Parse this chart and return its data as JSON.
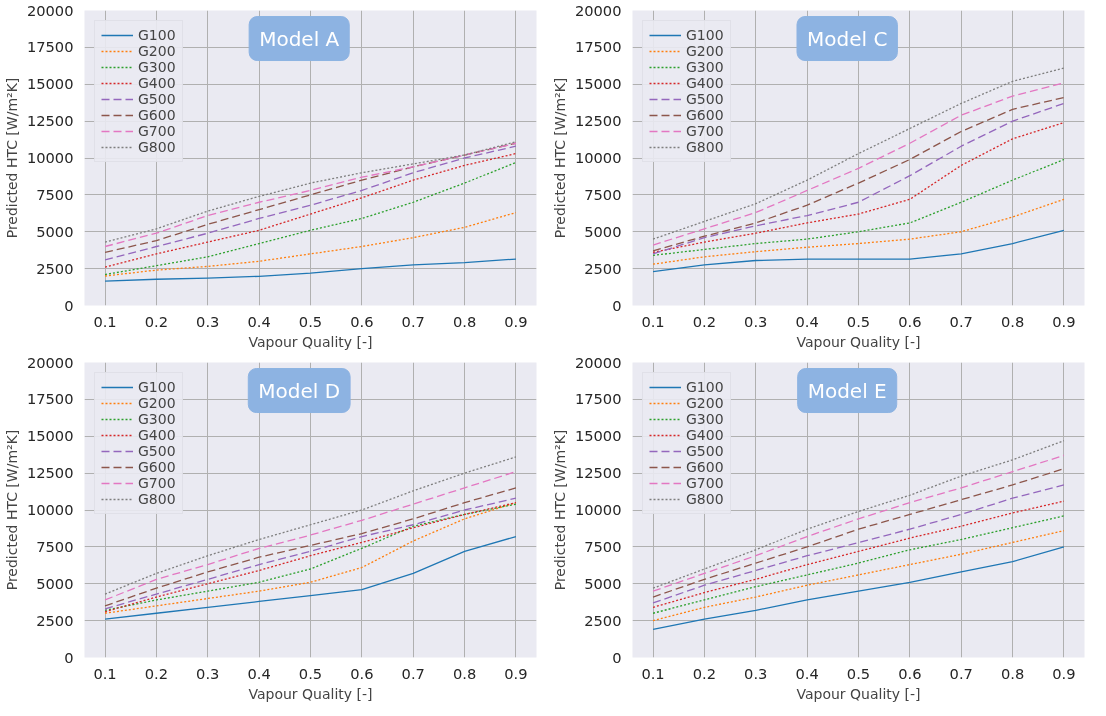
{
  "chart_data": [
    {
      "type": "line",
      "annotations": [
        "Model A"
      ],
      "xlabel": "Vapour Quality [-]",
      "ylabel": "Predicted HTC [W/m²K]",
      "x": [
        0.1,
        0.2,
        0.3,
        0.4,
        0.5,
        0.6,
        0.7,
        0.8,
        0.9
      ],
      "xlim": [
        0.06,
        0.94
      ],
      "xticks": [
        0.1,
        0.2,
        0.3,
        0.4,
        0.5,
        0.6,
        0.7,
        0.8,
        0.9
      ],
      "ylim": [
        0,
        20000
      ],
      "yticks": [
        0,
        2500,
        5000,
        7500,
        10000,
        12500,
        15000,
        17500,
        20000
      ],
      "grid": true,
      "legend": "top left",
      "series": [
        {
          "name": "G100",
          "color": "#1f77b4",
          "line_style": "solid",
          "values": [
            1650,
            1780,
            1850,
            1980,
            2200,
            2500,
            2750,
            2900,
            3150
          ]
        },
        {
          "name": "G200",
          "color": "#ff7f0e",
          "line_style": "dotted",
          "values": [
            2000,
            2400,
            2650,
            3000,
            3500,
            4000,
            4600,
            5300,
            6300
          ]
        },
        {
          "name": "G300",
          "color": "#2ca02c",
          "line_style": "dotted",
          "values": [
            2100,
            2700,
            3300,
            4200,
            5100,
            5900,
            7000,
            8300,
            9700
          ]
        },
        {
          "name": "G400",
          "color": "#d62728",
          "line_style": "dotted",
          "values": [
            2600,
            3500,
            4300,
            5100,
            6200,
            7300,
            8500,
            9500,
            10300
          ]
        },
        {
          "name": "G500",
          "color": "#9467bd",
          "line_style": "dashed",
          "values": [
            3100,
            4000,
            4900,
            5900,
            6800,
            7800,
            9000,
            10000,
            10800
          ]
        },
        {
          "name": "G600",
          "color": "#8c564b",
          "line_style": "dashed",
          "values": [
            3600,
            4400,
            5500,
            6500,
            7500,
            8500,
            9400,
            10200,
            11000
          ]
        },
        {
          "name": "G700",
          "color": "#e377c2",
          "line_style": "dashed",
          "values": [
            4000,
            4900,
            6100,
            7000,
            7800,
            8700,
            9400,
            10200,
            11000
          ]
        },
        {
          "name": "G800",
          "color": "#7f7f7f",
          "line_style": "dotted",
          "values": [
            4300,
            5200,
            6400,
            7400,
            8300,
            9000,
            9600,
            10200,
            11100
          ]
        }
      ]
    },
    {
      "type": "line",
      "annotations": [
        "Model C"
      ],
      "xlabel": "Vapour Quality [-]",
      "ylabel": "Predicted HTC [W/m²K]",
      "x": [
        0.1,
        0.2,
        0.3,
        0.4,
        0.5,
        0.6,
        0.7,
        0.8,
        0.9
      ],
      "xlim": [
        0.06,
        0.94
      ],
      "xticks": [
        0.1,
        0.2,
        0.3,
        0.4,
        0.5,
        0.6,
        0.7,
        0.8,
        0.9
      ],
      "ylim": [
        0,
        20000
      ],
      "yticks": [
        0,
        2500,
        5000,
        7500,
        10000,
        12500,
        15000,
        17500,
        20000
      ],
      "grid": true,
      "legend": "top left",
      "series": [
        {
          "name": "G100",
          "color": "#1f77b4",
          "line_style": "solid",
          "values": [
            2300,
            2750,
            3050,
            3150,
            3150,
            3150,
            3500,
            4200,
            5100
          ]
        },
        {
          "name": "G200",
          "color": "#ff7f0e",
          "line_style": "dotted",
          "values": [
            2800,
            3300,
            3650,
            3950,
            4200,
            4500,
            5000,
            6000,
            7200
          ]
        },
        {
          "name": "G300",
          "color": "#2ca02c",
          "line_style": "dotted",
          "values": [
            3400,
            3800,
            4200,
            4500,
            5000,
            5600,
            7000,
            8500,
            9900
          ]
        },
        {
          "name": "G400",
          "color": "#d62728",
          "line_style": "dotted",
          "values": [
            3600,
            4300,
            4900,
            5600,
            6200,
            7200,
            9500,
            11300,
            12400
          ]
        },
        {
          "name": "G500",
          "color": "#9467bd",
          "line_style": "dashed",
          "values": [
            3500,
            4600,
            5400,
            6100,
            7000,
            8800,
            10800,
            12500,
            13700
          ]
        },
        {
          "name": "G600",
          "color": "#8c564b",
          "line_style": "dashed",
          "values": [
            3700,
            4700,
            5600,
            6800,
            8300,
            9900,
            11800,
            13300,
            14100
          ]
        },
        {
          "name": "G700",
          "color": "#e377c2",
          "line_style": "dashed",
          "values": [
            4100,
            5200,
            6300,
            7800,
            9300,
            11000,
            12900,
            14200,
            15100
          ]
        },
        {
          "name": "G800",
          "color": "#7f7f7f",
          "line_style": "dotted",
          "values": [
            4500,
            5700,
            6900,
            8500,
            10300,
            12000,
            13700,
            15200,
            16100
          ]
        }
      ]
    },
    {
      "type": "line",
      "annotations": [
        "Model D"
      ],
      "xlabel": "Vapour Quality [-]",
      "ylabel": "Predicted HTC [W/m²K]",
      "x": [
        0.1,
        0.2,
        0.3,
        0.4,
        0.5,
        0.6,
        0.7,
        0.8,
        0.9
      ],
      "xlim": [
        0.06,
        0.94
      ],
      "xticks": [
        0.1,
        0.2,
        0.3,
        0.4,
        0.5,
        0.6,
        0.7,
        0.8,
        0.9
      ],
      "ylim": [
        0,
        20000
      ],
      "yticks": [
        0,
        2500,
        5000,
        7500,
        10000,
        12500,
        15000,
        17500,
        20000
      ],
      "grid": true,
      "legend": "top left",
      "series": [
        {
          "name": "G100",
          "color": "#1f77b4",
          "line_style": "solid",
          "values": [
            2600,
            3000,
            3400,
            3800,
            4200,
            4600,
            5700,
            7200,
            8200
          ]
        },
        {
          "name": "G200",
          "color": "#ff7f0e",
          "line_style": "dotted",
          "values": [
            3000,
            3500,
            4000,
            4500,
            5100,
            6100,
            7900,
            9400,
            10500
          ]
        },
        {
          "name": "G300",
          "color": "#2ca02c",
          "line_style": "dotted",
          "values": [
            3200,
            3900,
            4500,
            5100,
            6000,
            7400,
            8900,
            9700,
            10400
          ]
        },
        {
          "name": "G400",
          "color": "#d62728",
          "line_style": "dotted",
          "values": [
            3100,
            4100,
            5000,
            5900,
            6900,
            7800,
            8800,
            9700,
            10500
          ]
        },
        {
          "name": "G500",
          "color": "#9467bd",
          "line_style": "dashed",
          "values": [
            3300,
            4300,
            5300,
            6300,
            7200,
            8200,
            9000,
            10000,
            10800
          ]
        },
        {
          "name": "G600",
          "color": "#8c564b",
          "line_style": "dashed",
          "values": [
            3500,
            4700,
            5800,
            6800,
            7600,
            8400,
            9400,
            10500,
            11500
          ]
        },
        {
          "name": "G700",
          "color": "#e377c2",
          "line_style": "dashed",
          "values": [
            3900,
            5300,
            6300,
            7400,
            8300,
            9300,
            10400,
            11500,
            12600
          ]
        },
        {
          "name": "G800",
          "color": "#7f7f7f",
          "line_style": "dotted",
          "values": [
            4300,
            5700,
            6900,
            8000,
            9000,
            10000,
            11300,
            12500,
            13600
          ]
        }
      ]
    },
    {
      "type": "line",
      "annotations": [
        "Model E"
      ],
      "xlabel": "Vapour Quality [-]",
      "ylabel": "Predicted HTC [W/m²K]",
      "x": [
        0.1,
        0.2,
        0.3,
        0.4,
        0.5,
        0.6,
        0.7,
        0.8,
        0.9
      ],
      "xlim": [
        0.06,
        0.94
      ],
      "xticks": [
        0.1,
        0.2,
        0.3,
        0.4,
        0.5,
        0.6,
        0.7,
        0.8,
        0.9
      ],
      "ylim": [
        0,
        20000
      ],
      "yticks": [
        0,
        2500,
        5000,
        7500,
        10000,
        12500,
        15000,
        17500,
        20000
      ],
      "grid": true,
      "legend": "top left",
      "series": [
        {
          "name": "G100",
          "color": "#1f77b4",
          "line_style": "solid",
          "values": [
            1900,
            2600,
            3200,
            3900,
            4500,
            5100,
            5800,
            6500,
            7500
          ]
        },
        {
          "name": "G200",
          "color": "#ff7f0e",
          "line_style": "dotted",
          "values": [
            2500,
            3400,
            4100,
            4900,
            5600,
            6300,
            7000,
            7800,
            8600
          ]
        },
        {
          "name": "G300",
          "color": "#2ca02c",
          "line_style": "dotted",
          "values": [
            3000,
            3900,
            4800,
            5600,
            6400,
            7300,
            8000,
            8800,
            9600
          ]
        },
        {
          "name": "G400",
          "color": "#d62728",
          "line_style": "dotted",
          "values": [
            3400,
            4400,
            5300,
            6300,
            7200,
            8100,
            8900,
            9800,
            10600
          ]
        },
        {
          "name": "G500",
          "color": "#9467bd",
          "line_style": "dashed",
          "values": [
            3700,
            4900,
            5900,
            6900,
            7800,
            8700,
            9700,
            10800,
            11700
          ]
        },
        {
          "name": "G600",
          "color": "#8c564b",
          "line_style": "dashed",
          "values": [
            4100,
            5300,
            6400,
            7500,
            8700,
            9700,
            10700,
            11700,
            12800
          ]
        },
        {
          "name": "G700",
          "color": "#e377c2",
          "line_style": "dashed",
          "values": [
            4500,
            5700,
            6900,
            8200,
            9400,
            10500,
            11500,
            12600,
            13700
          ]
        },
        {
          "name": "G800",
          "color": "#7f7f7f",
          "line_style": "dotted",
          "values": [
            4700,
            6000,
            7300,
            8700,
            9900,
            11000,
            12300,
            13400,
            14700
          ]
        }
      ]
    }
  ]
}
